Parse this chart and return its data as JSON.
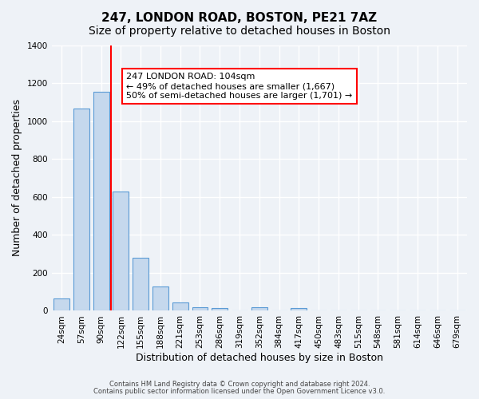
{
  "title": "247, LONDON ROAD, BOSTON, PE21 7AZ",
  "subtitle": "Size of property relative to detached houses in Boston",
  "xlabel": "Distribution of detached houses by size in Boston",
  "ylabel": "Number of detached properties",
  "footnote1": "Contains HM Land Registry data © Crown copyright and database right 2024.",
  "footnote2": "Contains public sector information licensed under the Open Government Licence v3.0.",
  "bar_labels": [
    "24sqm",
    "57sqm",
    "90sqm",
    "122sqm",
    "155sqm",
    "188sqm",
    "221sqm",
    "253sqm",
    "286sqm",
    "319sqm",
    "352sqm",
    "384sqm",
    "417sqm",
    "450sqm",
    "483sqm",
    "515sqm",
    "548sqm",
    "581sqm",
    "614sqm",
    "646sqm",
    "679sqm"
  ],
  "bar_values": [
    65,
    1065,
    1155,
    630,
    280,
    130,
    45,
    20,
    15,
    0,
    20,
    0,
    15,
    0,
    0,
    0,
    0,
    0,
    0,
    0,
    0
  ],
  "bar_color": "#c5d8ed",
  "bar_edge_color": "#5b9bd5",
  "vline_x": 2.5,
  "vline_color": "red",
  "annotation_title": "247 LONDON ROAD: 104sqm",
  "annotation_line1": "← 49% of detached houses are smaller (1,667)",
  "annotation_line2": "50% of semi-detached houses are larger (1,701) →",
  "annotation_box_color": "white",
  "annotation_box_edge_color": "red",
  "ylim": [
    0,
    1400
  ],
  "yticks": [
    0,
    200,
    400,
    600,
    800,
    1000,
    1200,
    1400
  ],
  "background_color": "#eef2f7",
  "grid_color": "white",
  "title_fontsize": 11,
  "subtitle_fontsize": 10,
  "axis_fontsize": 9,
  "tick_fontsize": 7.5
}
